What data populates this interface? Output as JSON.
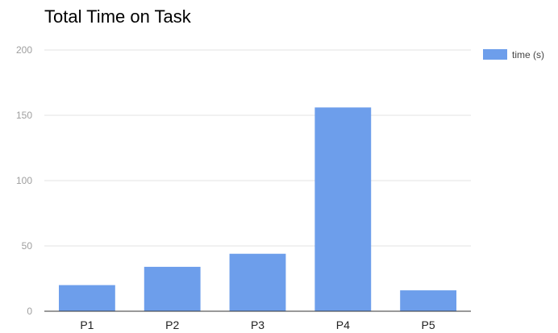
{
  "chart_data": {
    "type": "bar",
    "title": "Total Time on Task",
    "xlabel": "",
    "ylabel": "",
    "categories": [
      "P1",
      "P2",
      "P3",
      "P4",
      "P5"
    ],
    "series": [
      {
        "name": "time (s)",
        "values": [
          20,
          34,
          44,
          156,
          16
        ],
        "color": "#6d9eeb"
      }
    ],
    "ylim": [
      0,
      200
    ],
    "yticks": [
      0,
      50,
      100,
      150,
      200
    ],
    "grid": true,
    "legend": "right"
  }
}
